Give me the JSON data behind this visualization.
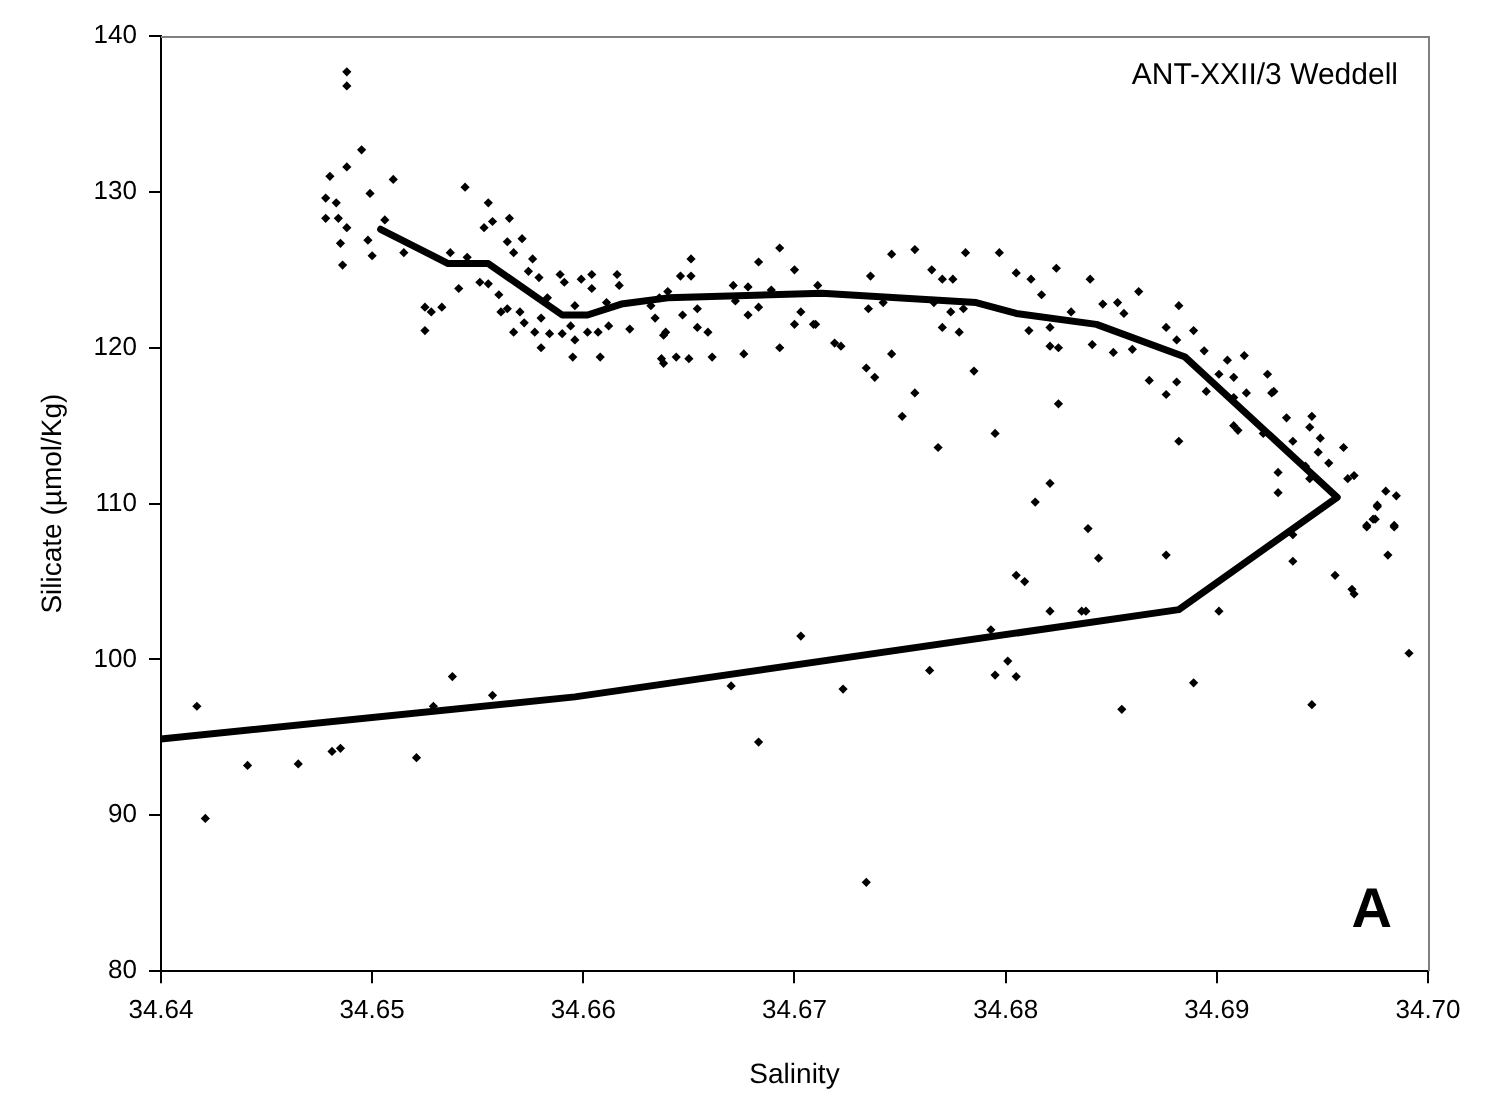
{
  "chart_data": {
    "type": "scatter",
    "xlabel": "Salinity",
    "ylabel": "Silicate (µmol/Kg)",
    "annotations": [
      "ANT-XXII/3 Weddell",
      "A"
    ],
    "xlim": [
      34.64,
      34.7
    ],
    "xticks": [
      34.64,
      34.65,
      34.66,
      34.67,
      34.68,
      34.69,
      {
        "value": 34.7,
        "label": "34.70"
      }
    ],
    "ylim": [
      80,
      140
    ],
    "yticks": [
      80,
      90,
      100,
      110,
      120,
      130,
      140
    ],
    "grid": false,
    "legend": false,
    "marker": "diamond",
    "series": [
      {
        "type": "scatter",
        "color": "#000000",
        "x": [
          34.6488,
          34.6488,
          34.6495,
          34.6488,
          34.648,
          34.651,
          34.6478,
          34.6483,
          34.6499,
          34.6478,
          34.6484,
          34.6488,
          34.6485,
          34.6486,
          34.6498,
          34.65,
          34.6506,
          34.6515,
          34.6544,
          34.6555,
          34.6553,
          34.6557,
          34.6565,
          34.6564,
          34.6571,
          34.6567,
          34.6537,
          34.6545,
          34.6541,
          34.6525,
          34.6528,
          34.6533,
          34.6525,
          34.6551,
          34.6555,
          34.656,
          34.6564,
          34.6561,
          34.657,
          34.6567,
          34.6572,
          34.6576,
          34.6574,
          34.6579,
          34.6583,
          34.658,
          34.6577,
          34.658,
          34.6584,
          34.6589,
          34.6591,
          34.659,
          34.6594,
          34.6596,
          34.6596,
          34.6595,
          34.6599,
          34.6604,
          34.6604,
          34.6602,
          34.6607,
          34.6608,
          34.6611,
          34.6616,
          34.6617,
          34.6612,
          34.6622,
          34.6632,
          34.6636,
          34.664,
          34.6634,
          34.6639,
          34.6638,
          34.6637,
          34.6638,
          34.6644,
          34.665,
          34.6646,
          34.6651,
          34.6651,
          34.6647,
          34.6654,
          34.6654,
          34.6659,
          34.6661,
          34.6671,
          34.6672,
          34.6678,
          34.6678,
          34.6676,
          34.6683,
          34.6683,
          34.6689,
          34.6693,
          34.6693,
          34.67,
          34.67,
          34.6703,
          34.671,
          34.6711,
          34.6709,
          34.6719,
          34.6722,
          34.6736,
          34.6735,
          34.6734,
          34.6738,
          34.6742,
          34.6746,
          34.6757,
          34.6746,
          34.6757,
          34.6751,
          34.6765,
          34.677,
          34.6775,
          34.6766,
          34.6774,
          34.678,
          34.677,
          34.6778,
          34.6781,
          34.6785,
          34.6768,
          34.6795,
          34.6797,
          34.6805,
          34.6812,
          34.6817,
          34.6811,
          34.6821,
          34.6821,
          34.6825,
          34.6824,
          34.6831,
          34.6825,
          34.6821,
          34.6814,
          34.684,
          34.6841,
          34.6846,
          34.6851,
          34.6853,
          34.6856,
          34.686,
          34.6863,
          34.6868,
          34.6876,
          34.6876,
          34.6882,
          34.6881,
          34.6881,
          34.6882,
          34.6889,
          34.6894,
          34.6895,
          34.6901,
          34.6905,
          34.6908,
          34.6908,
          34.6908,
          34.691,
          34.6913,
          34.6914,
          34.6922,
          34.6924,
          34.6926,
          34.6927,
          34.6933,
          34.6936,
          34.6945,
          34.6944,
          34.6949,
          34.6948,
          34.6942,
          34.6944,
          34.6953,
          34.696,
          34.6929,
          34.6929,
          34.6962,
          34.6965,
          34.698,
          34.6985,
          34.6976,
          34.6971,
          34.6974,
          34.6984,
          34.6839,
          34.6976,
          34.6975,
          34.6971,
          34.6984,
          34.6981,
          34.6936,
          34.6936,
          34.6956,
          34.6964,
          34.6965,
          34.6991,
          34.6945,
          34.6901,
          34.6889,
          34.6876,
          34.6855,
          34.6844,
          34.6836,
          34.6838,
          34.6821,
          34.6809,
          34.6805,
          34.6793,
          34.6801,
          34.6795,
          34.6805,
          34.6764,
          34.6723,
          34.6734,
          34.6703,
          34.6417,
          34.6421,
          34.6441,
          34.6465,
          34.6481,
          34.6485,
          34.6521,
          34.6529,
          34.6538,
          34.6557,
          34.667,
          34.6683
        ],
        "values": [
          137.7,
          136.8,
          132.7,
          131.6,
          131.0,
          130.8,
          129.6,
          129.3,
          129.9,
          128.3,
          128.3,
          127.7,
          126.7,
          125.3,
          126.9,
          125.9,
          128.2,
          126.1,
          130.3,
          129.3,
          127.7,
          128.1,
          128.3,
          126.8,
          127.0,
          126.1,
          126.1,
          125.8,
          123.8,
          122.6,
          122.3,
          122.6,
          121.1,
          124.2,
          124.1,
          123.4,
          122.5,
          122.3,
          122.3,
          121.0,
          121.6,
          125.7,
          124.9,
          124.5,
          123.2,
          121.9,
          121.0,
          120.0,
          120.9,
          124.7,
          124.2,
          120.9,
          121.4,
          122.7,
          120.5,
          119.4,
          124.4,
          124.7,
          123.8,
          121.0,
          121.0,
          119.4,
          122.9,
          124.7,
          124.0,
          121.4,
          121.2,
          122.7,
          123.2,
          123.6,
          121.9,
          121.0,
          120.8,
          119.3,
          119.0,
          119.4,
          119.3,
          124.6,
          125.7,
          124.6,
          122.1,
          122.5,
          121.3,
          121.0,
          119.4,
          124.0,
          123.0,
          123.9,
          122.1,
          119.6,
          125.5,
          122.6,
          123.7,
          126.4,
          120.0,
          125.0,
          121.5,
          122.3,
          121.5,
          124.0,
          121.5,
          120.3,
          120.1,
          124.6,
          122.5,
          118.7,
          118.1,
          122.9,
          126.0,
          126.3,
          119.6,
          117.1,
          115.6,
          125.0,
          124.4,
          124.4,
          122.9,
          122.3,
          122.5,
          121.3,
          121.0,
          126.1,
          118.5,
          113.6,
          114.5,
          126.1,
          124.8,
          124.4,
          123.4,
          121.1,
          121.3,
          120.1,
          120.0,
          125.1,
          122.3,
          116.4,
          111.3,
          110.1,
          124.4,
          120.2,
          122.8,
          119.7,
          122.9,
          122.2,
          119.9,
          123.6,
          117.9,
          121.3,
          117.0,
          122.7,
          120.5,
          117.8,
          114.0,
          121.1,
          119.8,
          117.2,
          118.3,
          119.2,
          118.1,
          116.8,
          115.0,
          114.7,
          119.5,
          117.1,
          114.5,
          118.3,
          117.1,
          117.2,
          115.5,
          114.0,
          115.6,
          114.9,
          114.2,
          113.3,
          112.4,
          111.6,
          112.6,
          113.6,
          112.0,
          110.7,
          111.6,
          111.8,
          110.8,
          110.5,
          109.9,
          108.6,
          109.0,
          108.6,
          108.4,
          109.8,
          109.0,
          108.5,
          108.5,
          106.7,
          108.0,
          106.3,
          105.4,
          104.5,
          104.2,
          100.4,
          97.1,
          103.1,
          98.5,
          106.7,
          96.8,
          106.5,
          103.1,
          103.1,
          103.1,
          105.0,
          105.4,
          101.9,
          99.9,
          99.0,
          98.9,
          99.3,
          98.1,
          85.7,
          101.5,
          97.0,
          89.8,
          93.2,
          93.3,
          94.1,
          94.3,
          93.7,
          97.0,
          98.9,
          97.7,
          98.3,
          94.7
        ]
      },
      {
        "type": "line",
        "color": "#000000",
        "marker": "none",
        "x": [
          34.6504,
          34.6536,
          34.6555,
          34.659,
          34.6602,
          34.6618,
          34.664,
          34.6713,
          34.6786,
          34.6805,
          34.6843,
          34.6885,
          34.6957,
          34.6882,
          34.6596,
          34.64
        ],
        "values": [
          127.6,
          125.4,
          125.4,
          122.1,
          122.1,
          122.8,
          123.2,
          123.5,
          122.9,
          122.2,
          121.5,
          119.4,
          110.4,
          103.2,
          97.6,
          94.9
        ]
      }
    ]
  }
}
